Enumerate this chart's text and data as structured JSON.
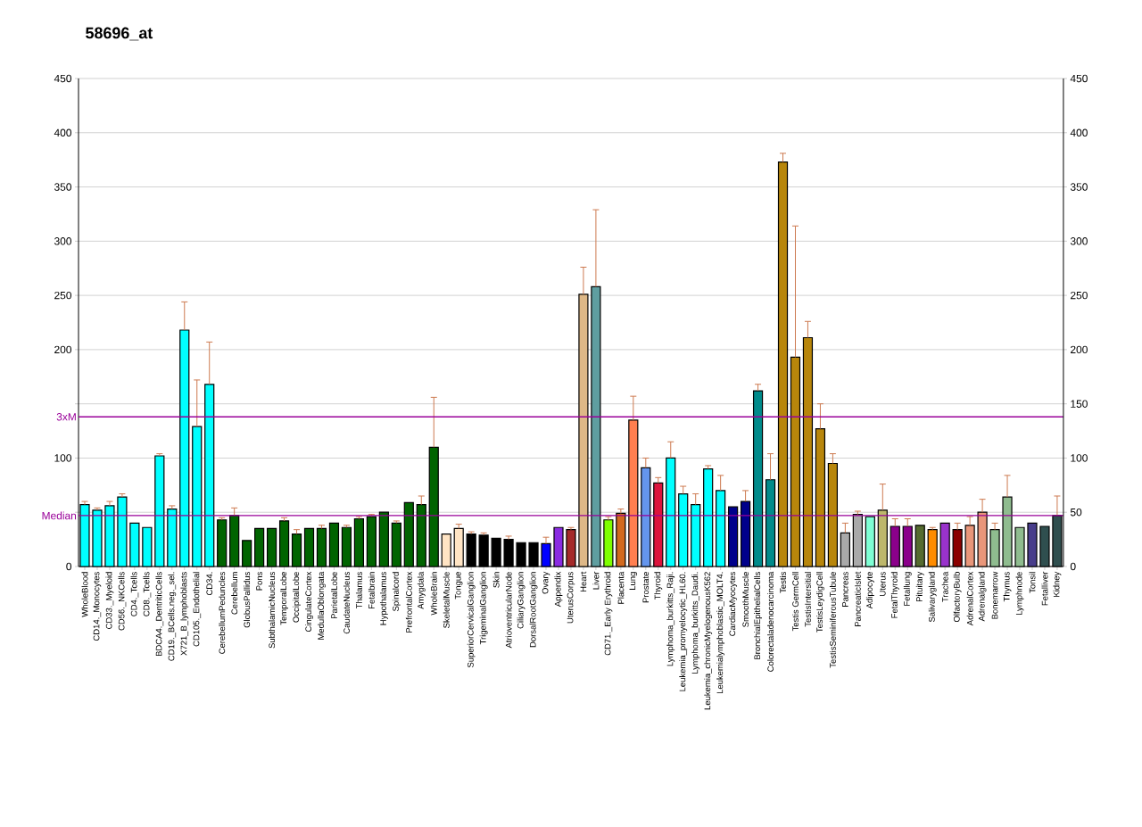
{
  "chart_data": {
    "type": "bar",
    "title": "58696_at",
    "categories": [
      "WholeBlood",
      "CD14._Monocytes",
      "CD33._Myeloid",
      "CD56._NKCells",
      "CD4._Tcells",
      "CD8._Tcells",
      "BDCA4._DentriticCells",
      "CD19._BCells.neg._sel.",
      "X721_B_lymphoblasts",
      "CD105._Endothelial",
      "CD34.",
      "CerebellumPeduncles",
      "Cerebellum",
      "GlobusPallidus",
      "Pons",
      "SubthalamicNucleus",
      "TemporalLobe",
      "OccipitalLobe",
      "CingulateCortex",
      "MedullaOblongata",
      "ParietalLobe",
      "CaudateNucleus",
      "Thalamus",
      "Fetalbrain",
      "Hypothalamus",
      "Spinalcord",
      "PrefrontalCortex",
      "Amygdala",
      "WholeBrain",
      "SkeletalMuscle",
      "Tongue",
      "SuperiorCervicalGanglion",
      "TrigeminalGanglion",
      "Skin",
      "AtrioventricularNode",
      "CiliaryGanglion",
      "DorsalRootGanglion",
      "Ovary",
      "Appendix",
      "UterusCorpus",
      "Heart",
      "Liver",
      "CD71._Early Erythroid",
      "Placenta",
      "Lung",
      "Prostate",
      "Thyroid",
      "Lymphoma_burkitts_Raji.",
      "Leukemia_promyelocytic_HL60.",
      "Lymphoma_burkitts_Daudi.",
      "Leukemia_chronicMyelogenousK562",
      "Leukemialymphoblastic_MOLT4.",
      "CardiacMyocytes",
      "SmoothMuscle",
      "BronchialEpithelialCells",
      "Colorectaladenocarcinoma",
      "Testis",
      "Testis GermCell",
      "TestisIntersitial",
      "TestisLeydigCell",
      "TestisSeminiferousTubule",
      "Pancreas",
      "PancreaticIslet",
      "Adipocyte",
      "Uterus",
      "FetalThyroid",
      "Fetallung",
      "Pituitary",
      "Salivarygland",
      "Trachea",
      "OlfactoryBulb",
      "AdrenalCortex",
      "Adrenalgland",
      "Bonemarrow",
      "Thymus",
      "Lymphnode",
      "Tonsil",
      "Fetalliver",
      "Kidney"
    ],
    "values": [
      57,
      52,
      56,
      64,
      40,
      36,
      102,
      53,
      218,
      129,
      168,
      43,
      47,
      24,
      35,
      35,
      42,
      30,
      35,
      35,
      40,
      36,
      44,
      46,
      50,
      40,
      59,
      57,
      110,
      30,
      35,
      30,
      29,
      26,
      25,
      22,
      22,
      21,
      36,
      34,
      251,
      258,
      43,
      49,
      135,
      91,
      77,
      100,
      67,
      57,
      90,
      70,
      55,
      60,
      162,
      80,
      373,
      193,
      211,
      127,
      95,
      31,
      48,
      46,
      52,
      37,
      37,
      38,
      34,
      40,
      34,
      38,
      50,
      34,
      64,
      36,
      40,
      37,
      47
    ],
    "errors": [
      3,
      2,
      4,
      3,
      null,
      null,
      2,
      3,
      26,
      43,
      39,
      2,
      7,
      null,
      null,
      null,
      3,
      4,
      null,
      3,
      null,
      2,
      2,
      2,
      null,
      2,
      null,
      8,
      46,
      null,
      4,
      2,
      2,
      null,
      3,
      null,
      null,
      6,
      null,
      2,
      25,
      71,
      3,
      4,
      22,
      9,
      5,
      15,
      7,
      10,
      3,
      14,
      null,
      10,
      6,
      24,
      8,
      121,
      15,
      23,
      9,
      9,
      3,
      null,
      24,
      7,
      7,
      null,
      2,
      null,
      6,
      8,
      12,
      6,
      20,
      null,
      null,
      null,
      18
    ],
    "colors": [
      "#00ffff",
      "#00ffff",
      "#00ffff",
      "#00ffff",
      "#00ffff",
      "#00ffff",
      "#00ffff",
      "#00ffff",
      "#00ffff",
      "#00ffff",
      "#00ffff",
      "#006400",
      "#006400",
      "#006400",
      "#006400",
      "#006400",
      "#006400",
      "#006400",
      "#006400",
      "#006400",
      "#006400",
      "#006400",
      "#006400",
      "#006400",
      "#006400",
      "#006400",
      "#006400",
      "#006400",
      "#006400",
      "#ffe4c4",
      "#ffe4c4",
      "#000000",
      "#000000",
      "#000000",
      "#000000",
      "#000000",
      "#000000",
      "#0000ff",
      "#8a2be2",
      "#a52a2a",
      "#deb887",
      "#5f9ea0",
      "#7fff00",
      "#d2691e",
      "#ff7f50",
      "#6495ed",
      "#dc143c",
      "#00ffff",
      "#00ffff",
      "#00ffff",
      "#00ffff",
      "#00ffff",
      "#00008b",
      "#00008b",
      "#008b8b",
      "#008b8b",
      "#b8860b",
      "#b8860b",
      "#b8860b",
      "#b8860b",
      "#b8860b",
      "#a9a9a9",
      "#a9a9a9",
      "#7fffd4",
      "#bdb76b",
      "#8b008b",
      "#8b008b",
      "#556b2f",
      "#ff8c00",
      "#9932cc",
      "#8b0000",
      "#e9967a",
      "#e9967a",
      "#8fbc8f",
      "#8fbc8f",
      "#8fbc8f",
      "#483d8b",
      "#2f4f4f",
      "#2f4f4f"
    ],
    "ylim": [
      0,
      450
    ],
    "yticks": [
      0,
      {
        "value": 50,
        "label": null
      },
      100,
      {
        "value": 150,
        "label": null
      },
      200,
      250,
      300,
      350,
      400,
      450
    ],
    "y2lim": [
      0,
      450
    ],
    "y2ticks": [
      0,
      50,
      100,
      150,
      200,
      250,
      300,
      350,
      400,
      450
    ],
    "grid": "y",
    "ref_lines": [
      {
        "axis": "y",
        "value": 47,
        "label": "Median",
        "color": "#990099"
      },
      {
        "axis": "y",
        "value": 138,
        "label": "3xM",
        "color": "#990099"
      }
    ]
  }
}
